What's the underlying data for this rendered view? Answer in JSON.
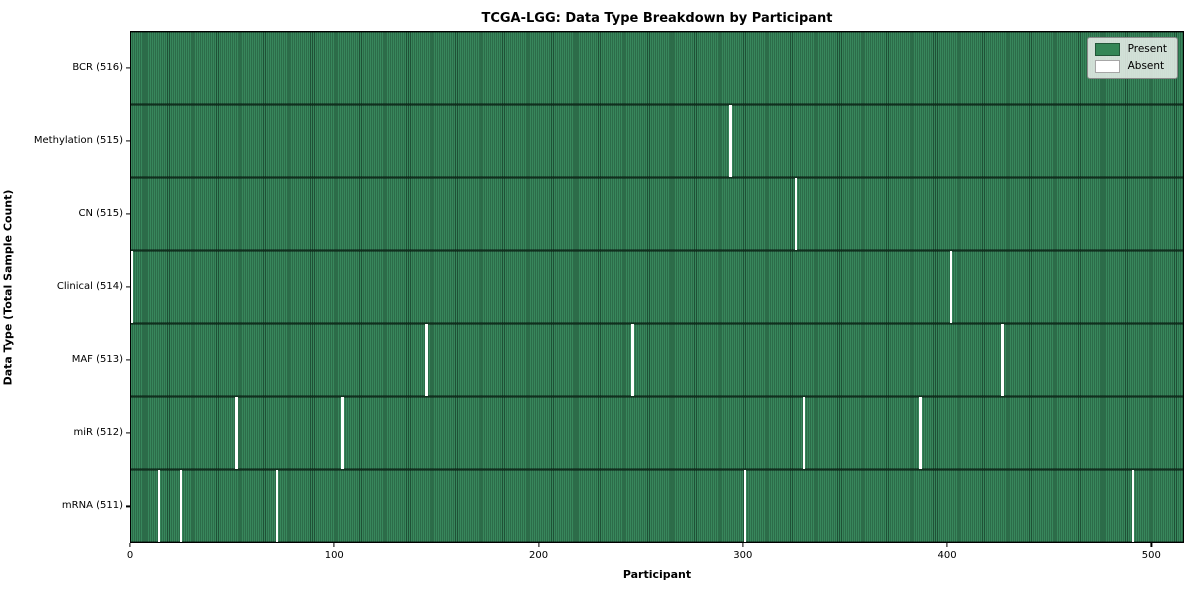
{
  "chart_data": {
    "type": "heatmap",
    "title": "TCGA-LGG: Data Type Breakdown by Participant",
    "xlabel": "Participant",
    "ylabel": "Data Type (Total Sample Count)",
    "x_ticks": [
      0,
      100,
      200,
      300,
      400,
      500
    ],
    "x_range": [
      0,
      516
    ],
    "n_participants": 516,
    "legend": [
      {
        "label": "Present",
        "color": "#348656"
      },
      {
        "label": "Absent",
        "color": "#ffffff"
      }
    ],
    "colors": {
      "present_fill": "#38875c",
      "present_edge": "#1f5136",
      "absent": "#ffffff",
      "row_divider": "#10301d"
    },
    "rows": [
      {
        "data_type": "BCR",
        "label": "BCR (516)",
        "count": 516,
        "absent_participants": []
      },
      {
        "data_type": "Methylation",
        "label": "Methylation (515)",
        "count": 515,
        "absent_participants": [
          293
        ]
      },
      {
        "data_type": "CN",
        "label": "CN (515)",
        "count": 515,
        "absent_participants": [
          325
        ]
      },
      {
        "data_type": "Clinical",
        "label": "Clinical (514)",
        "count": 514,
        "absent_participants": [
          0,
          401
        ]
      },
      {
        "data_type": "MAF",
        "label": "MAF (513)",
        "count": 513,
        "absent_participants": [
          144,
          245,
          426
        ]
      },
      {
        "data_type": "miR",
        "label": "miR (512)",
        "count": 512,
        "absent_participants": [
          51,
          103,
          329,
          386
        ]
      },
      {
        "data_type": "mRNA",
        "label": "mRNA (511)",
        "count": 511,
        "absent_participants": [
          13,
          24,
          71,
          300,
          490
        ]
      }
    ]
  }
}
